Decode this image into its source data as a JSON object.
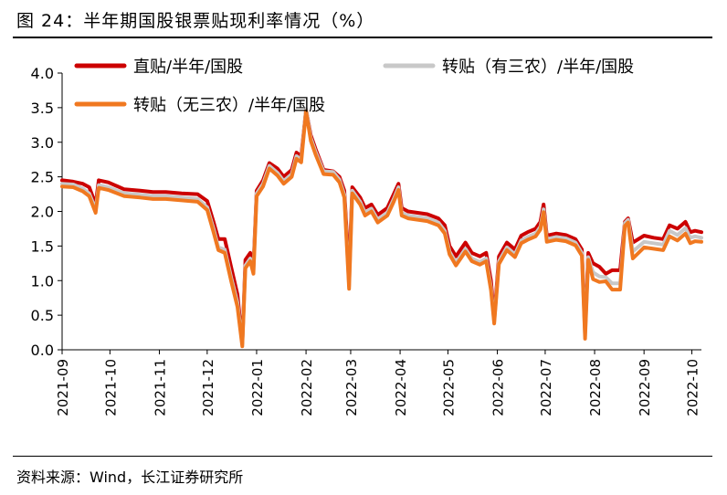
{
  "figure": {
    "title": "图 24：半年期国股银票贴现利率情况（%）",
    "source": "资料来源：Wind，长江证券研究所"
  },
  "chart_data": {
    "type": "line",
    "yticks": [
      "0.0",
      "0.5",
      "1.0",
      "1.5",
      "2.0",
      "2.5",
      "3.0",
      "3.5",
      "4.0"
    ],
    "ylim": [
      0,
      4
    ],
    "x_labels": [
      "2021-09",
      "2021-10",
      "2021-11",
      "2021-12",
      "2022-01",
      "2022-02",
      "2022-03",
      "2022-04",
      "2022-05",
      "2022-06",
      "2022-07",
      "2022-08",
      "2022-09",
      "2022-10"
    ],
    "x_range": [
      "2021-09-01",
      "2022-10-07"
    ],
    "legend": "top",
    "grid": false,
    "series": [
      {
        "name": "直贴/半年/国股",
        "color": "#cc0000",
        "points": [
          [
            "2021-09-01",
            2.45
          ],
          [
            "2021-09-08",
            2.43
          ],
          [
            "2021-09-14",
            2.4
          ],
          [
            "2021-09-18",
            2.35
          ],
          [
            "2021-09-22",
            2.1
          ],
          [
            "2021-09-24",
            2.45
          ],
          [
            "2021-09-30",
            2.42
          ],
          [
            "2021-10-10",
            2.32
          ],
          [
            "2021-10-20",
            2.3
          ],
          [
            "2021-10-28",
            2.28
          ],
          [
            "2021-11-05",
            2.28
          ],
          [
            "2021-11-15",
            2.26
          ],
          [
            "2021-11-25",
            2.25
          ],
          [
            "2021-12-01",
            2.15
          ],
          [
            "2021-12-05",
            1.85
          ],
          [
            "2021-12-08",
            1.6
          ],
          [
            "2021-12-12",
            1.6
          ],
          [
            "2021-12-16",
            1.2
          ],
          [
            "2021-12-20",
            0.8
          ],
          [
            "2021-12-23",
            0.1
          ],
          [
            "2021-12-25",
            1.3
          ],
          [
            "2021-12-28",
            1.4
          ],
          [
            "2021-12-30",
            1.2
          ],
          [
            "2022-01-01",
            2.3
          ],
          [
            "2022-01-05",
            2.45
          ],
          [
            "2022-01-09",
            2.7
          ],
          [
            "2022-01-14",
            2.62
          ],
          [
            "2022-01-18",
            2.5
          ],
          [
            "2022-01-23",
            2.6
          ],
          [
            "2022-01-26",
            2.85
          ],
          [
            "2022-01-29",
            2.8
          ],
          [
            "2022-02-01",
            3.47
          ],
          [
            "2022-02-04",
            3.1
          ],
          [
            "2022-02-07",
            2.9
          ],
          [
            "2022-02-12",
            2.6
          ],
          [
            "2022-02-18",
            2.58
          ],
          [
            "2022-02-22",
            2.5
          ],
          [
            "2022-02-25",
            2.3
          ],
          [
            "2022-02-28",
            1.1
          ],
          [
            "2022-03-02",
            2.35
          ],
          [
            "2022-03-07",
            2.2
          ],
          [
            "2022-03-10",
            2.05
          ],
          [
            "2022-03-14",
            2.1
          ],
          [
            "2022-03-18",
            1.95
          ],
          [
            "2022-03-24",
            2.05
          ],
          [
            "2022-03-28",
            2.25
          ],
          [
            "2022-03-31",
            2.4
          ],
          [
            "2022-04-02",
            2.05
          ],
          [
            "2022-04-06",
            2.0
          ],
          [
            "2022-04-12",
            1.98
          ],
          [
            "2022-04-18",
            1.96
          ],
          [
            "2022-04-25",
            1.9
          ],
          [
            "2022-04-29",
            1.8
          ],
          [
            "2022-05-02",
            1.5
          ],
          [
            "2022-05-06",
            1.35
          ],
          [
            "2022-05-12",
            1.55
          ],
          [
            "2022-05-16",
            1.4
          ],
          [
            "2022-05-21",
            1.35
          ],
          [
            "2022-05-25",
            1.4
          ],
          [
            "2022-05-28",
            1.0
          ],
          [
            "2022-05-30",
            0.45
          ],
          [
            "2022-06-02",
            1.35
          ],
          [
            "2022-06-07",
            1.55
          ],
          [
            "2022-06-12",
            1.45
          ],
          [
            "2022-06-16",
            1.65
          ],
          [
            "2022-06-20",
            1.7
          ],
          [
            "2022-06-25",
            1.75
          ],
          [
            "2022-06-28",
            1.85
          ],
          [
            "2022-06-30",
            2.1
          ],
          [
            "2022-07-02",
            1.65
          ],
          [
            "2022-07-08",
            1.68
          ],
          [
            "2022-07-14",
            1.66
          ],
          [
            "2022-07-20",
            1.6
          ],
          [
            "2022-07-24",
            1.45
          ],
          [
            "2022-07-26",
            0.25
          ],
          [
            "2022-07-28",
            1.4
          ],
          [
            "2022-07-31",
            1.25
          ],
          [
            "2022-08-04",
            1.2
          ],
          [
            "2022-08-08",
            1.1
          ],
          [
            "2022-08-12",
            1.15
          ],
          [
            "2022-08-17",
            1.15
          ],
          [
            "2022-08-20",
            1.85
          ],
          [
            "2022-08-22",
            1.9
          ],
          [
            "2022-08-25",
            1.55
          ],
          [
            "2022-09-01",
            1.65
          ],
          [
            "2022-09-07",
            1.62
          ],
          [
            "2022-09-13",
            1.6
          ],
          [
            "2022-09-17",
            1.8
          ],
          [
            "2022-09-22",
            1.75
          ],
          [
            "2022-09-27",
            1.85
          ],
          [
            "2022-09-30",
            1.7
          ],
          [
            "2022-10-03",
            1.72
          ],
          [
            "2022-10-07",
            1.7
          ]
        ]
      },
      {
        "name": "转贴（有三农）/半年/国股",
        "color": "#c8c8c8",
        "points": [
          [
            "2021-09-01",
            2.4
          ],
          [
            "2021-09-08",
            2.39
          ],
          [
            "2021-09-14",
            2.33
          ],
          [
            "2021-09-18",
            2.26
          ],
          [
            "2021-09-22",
            2.03
          ],
          [
            "2021-09-24",
            2.38
          ],
          [
            "2021-09-30",
            2.35
          ],
          [
            "2021-10-10",
            2.26
          ],
          [
            "2021-10-20",
            2.24
          ],
          [
            "2021-10-28",
            2.22
          ],
          [
            "2021-11-05",
            2.22
          ],
          [
            "2021-11-15",
            2.2
          ],
          [
            "2021-11-25",
            2.18
          ],
          [
            "2021-12-01",
            2.06
          ],
          [
            "2021-12-05",
            1.75
          ],
          [
            "2021-12-08",
            1.48
          ],
          [
            "2021-12-12",
            1.45
          ],
          [
            "2021-12-16",
            1.05
          ],
          [
            "2021-12-20",
            0.68
          ],
          [
            "2021-12-23",
            0.08
          ],
          [
            "2021-12-25",
            1.22
          ],
          [
            "2021-12-28",
            1.32
          ],
          [
            "2021-12-30",
            1.14
          ],
          [
            "2022-01-01",
            2.26
          ],
          [
            "2022-01-05",
            2.4
          ],
          [
            "2022-01-09",
            2.66
          ],
          [
            "2022-01-14",
            2.56
          ],
          [
            "2022-01-18",
            2.44
          ],
          [
            "2022-01-23",
            2.54
          ],
          [
            "2022-01-26",
            2.8
          ],
          [
            "2022-01-29",
            2.75
          ],
          [
            "2022-02-01",
            3.48
          ],
          [
            "2022-02-04",
            3.06
          ],
          [
            "2022-02-07",
            2.86
          ],
          [
            "2022-02-12",
            2.58
          ],
          [
            "2022-02-18",
            2.57
          ],
          [
            "2022-02-22",
            2.46
          ],
          [
            "2022-02-25",
            2.24
          ],
          [
            "2022-02-28",
            0.92
          ],
          [
            "2022-03-02",
            2.3
          ],
          [
            "2022-03-07",
            2.14
          ],
          [
            "2022-03-10",
            1.98
          ],
          [
            "2022-03-14",
            2.04
          ],
          [
            "2022-03-18",
            1.88
          ],
          [
            "2022-03-24",
            1.98
          ],
          [
            "2022-03-28",
            2.18
          ],
          [
            "2022-03-31",
            2.35
          ],
          [
            "2022-04-02",
            1.98
          ],
          [
            "2022-04-06",
            1.94
          ],
          [
            "2022-04-12",
            1.92
          ],
          [
            "2022-04-18",
            1.9
          ],
          [
            "2022-04-25",
            1.84
          ],
          [
            "2022-04-29",
            1.72
          ],
          [
            "2022-05-02",
            1.42
          ],
          [
            "2022-05-06",
            1.26
          ],
          [
            "2022-05-12",
            1.46
          ],
          [
            "2022-05-16",
            1.32
          ],
          [
            "2022-05-21",
            1.27
          ],
          [
            "2022-05-25",
            1.32
          ],
          [
            "2022-05-28",
            0.9
          ],
          [
            "2022-05-30",
            0.4
          ],
          [
            "2022-06-02",
            1.28
          ],
          [
            "2022-06-07",
            1.48
          ],
          [
            "2022-06-12",
            1.38
          ],
          [
            "2022-06-16",
            1.58
          ],
          [
            "2022-06-20",
            1.63
          ],
          [
            "2022-06-25",
            1.68
          ],
          [
            "2022-06-28",
            1.78
          ],
          [
            "2022-06-30",
            2.03
          ],
          [
            "2022-07-02",
            1.6
          ],
          [
            "2022-07-08",
            1.63
          ],
          [
            "2022-07-14",
            1.61
          ],
          [
            "2022-07-20",
            1.55
          ],
          [
            "2022-07-24",
            1.4
          ],
          [
            "2022-07-26",
            0.2
          ],
          [
            "2022-07-28",
            1.34
          ],
          [
            "2022-07-31",
            1.12
          ],
          [
            "2022-08-04",
            1.06
          ],
          [
            "2022-08-08",
            1.05
          ],
          [
            "2022-08-12",
            0.96
          ],
          [
            "2022-08-17",
            0.96
          ],
          [
            "2022-08-20",
            1.83
          ],
          [
            "2022-08-22",
            1.88
          ],
          [
            "2022-08-25",
            1.42
          ],
          [
            "2022-09-01",
            1.56
          ],
          [
            "2022-09-07",
            1.54
          ],
          [
            "2022-09-13",
            1.52
          ],
          [
            "2022-09-17",
            1.72
          ],
          [
            "2022-09-22",
            1.66
          ],
          [
            "2022-09-27",
            1.76
          ],
          [
            "2022-09-30",
            1.62
          ],
          [
            "2022-10-03",
            1.64
          ],
          [
            "2022-10-07",
            1.62
          ]
        ]
      },
      {
        "name": "转贴（无三农）/半年/国股",
        "color": "#f07820",
        "points": [
          [
            "2021-09-01",
            2.36
          ],
          [
            "2021-09-08",
            2.35
          ],
          [
            "2021-09-14",
            2.29
          ],
          [
            "2021-09-18",
            2.22
          ],
          [
            "2021-09-22",
            1.98
          ],
          [
            "2021-09-24",
            2.34
          ],
          [
            "2021-09-30",
            2.31
          ],
          [
            "2021-10-10",
            2.22
          ],
          [
            "2021-10-20",
            2.2
          ],
          [
            "2021-10-28",
            2.18
          ],
          [
            "2021-11-05",
            2.18
          ],
          [
            "2021-11-15",
            2.16
          ],
          [
            "2021-11-25",
            2.14
          ],
          [
            "2021-12-01",
            2.02
          ],
          [
            "2021-12-05",
            1.7
          ],
          [
            "2021-12-08",
            1.44
          ],
          [
            "2021-12-12",
            1.4
          ],
          [
            "2021-12-16",
            1.0
          ],
          [
            "2021-12-20",
            0.62
          ],
          [
            "2021-12-23",
            0.05
          ],
          [
            "2021-12-25",
            1.18
          ],
          [
            "2021-12-28",
            1.28
          ],
          [
            "2021-12-30",
            1.1
          ],
          [
            "2022-01-01",
            2.22
          ],
          [
            "2022-01-05",
            2.36
          ],
          [
            "2022-01-09",
            2.62
          ],
          [
            "2022-01-14",
            2.52
          ],
          [
            "2022-01-18",
            2.4
          ],
          [
            "2022-01-23",
            2.5
          ],
          [
            "2022-01-26",
            2.76
          ],
          [
            "2022-01-29",
            2.71
          ],
          [
            "2022-02-01",
            3.45
          ],
          [
            "2022-02-04",
            3.02
          ],
          [
            "2022-02-07",
            2.82
          ],
          [
            "2022-02-12",
            2.54
          ],
          [
            "2022-02-18",
            2.53
          ],
          [
            "2022-02-22",
            2.42
          ],
          [
            "2022-02-25",
            2.2
          ],
          [
            "2022-02-28",
            0.88
          ],
          [
            "2022-03-02",
            2.26
          ],
          [
            "2022-03-07",
            2.1
          ],
          [
            "2022-03-10",
            1.94
          ],
          [
            "2022-03-14",
            2.0
          ],
          [
            "2022-03-18",
            1.84
          ],
          [
            "2022-03-24",
            1.94
          ],
          [
            "2022-03-28",
            2.14
          ],
          [
            "2022-03-31",
            2.31
          ],
          [
            "2022-04-02",
            1.94
          ],
          [
            "2022-04-06",
            1.9
          ],
          [
            "2022-04-12",
            1.88
          ],
          [
            "2022-04-18",
            1.86
          ],
          [
            "2022-04-25",
            1.8
          ],
          [
            "2022-04-29",
            1.68
          ],
          [
            "2022-05-02",
            1.38
          ],
          [
            "2022-05-06",
            1.22
          ],
          [
            "2022-05-12",
            1.42
          ],
          [
            "2022-05-16",
            1.28
          ],
          [
            "2022-05-21",
            1.23
          ],
          [
            "2022-05-25",
            1.28
          ],
          [
            "2022-05-28",
            0.86
          ],
          [
            "2022-05-30",
            0.38
          ],
          [
            "2022-06-02",
            1.24
          ],
          [
            "2022-06-07",
            1.44
          ],
          [
            "2022-06-12",
            1.34
          ],
          [
            "2022-06-16",
            1.54
          ],
          [
            "2022-06-20",
            1.59
          ],
          [
            "2022-06-25",
            1.64
          ],
          [
            "2022-06-28",
            1.74
          ],
          [
            "2022-06-30",
            1.99
          ],
          [
            "2022-07-02",
            1.56
          ],
          [
            "2022-07-08",
            1.59
          ],
          [
            "2022-07-14",
            1.57
          ],
          [
            "2022-07-20",
            1.51
          ],
          [
            "2022-07-24",
            1.36
          ],
          [
            "2022-07-26",
            0.16
          ],
          [
            "2022-07-28",
            1.3
          ],
          [
            "2022-07-31",
            1.02
          ],
          [
            "2022-08-04",
            0.98
          ],
          [
            "2022-08-08",
            0.99
          ],
          [
            "2022-08-12",
            0.87
          ],
          [
            "2022-08-17",
            0.87
          ],
          [
            "2022-08-20",
            1.79
          ],
          [
            "2022-08-22",
            1.84
          ],
          [
            "2022-08-25",
            1.32
          ],
          [
            "2022-09-01",
            1.48
          ],
          [
            "2022-09-07",
            1.46
          ],
          [
            "2022-09-13",
            1.44
          ],
          [
            "2022-09-17",
            1.64
          ],
          [
            "2022-09-22",
            1.58
          ],
          [
            "2022-09-27",
            1.68
          ],
          [
            "2022-09-30",
            1.54
          ],
          [
            "2022-10-03",
            1.57
          ],
          [
            "2022-10-07",
            1.56
          ]
        ]
      }
    ]
  }
}
